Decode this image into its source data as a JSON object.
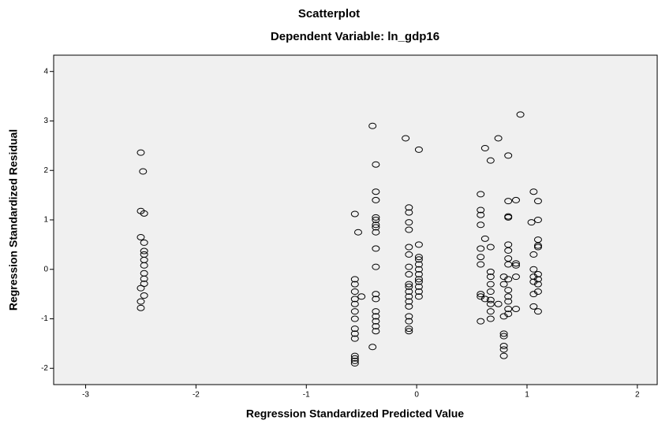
{
  "chart_data": {
    "type": "scatter",
    "title": "Scatterplot",
    "subtitle": "Dependent Variable: ln_gdp16",
    "xlabel": "Regression Standardized Predicted Value",
    "ylabel": "Regression Standardized Residual",
    "xlim": [
      -3.29,
      2.18
    ],
    "ylim": [
      -2.33,
      4.33
    ],
    "xticks": [
      -3,
      -2,
      -1,
      0,
      1,
      2
    ],
    "yticks": [
      -2,
      -1,
      0,
      1,
      2,
      3,
      4
    ],
    "color": "#000000",
    "background": "#f0f0f0",
    "x": [
      -2.5,
      -2.48,
      -2.5,
      -2.47,
      -2.5,
      -2.47,
      -2.47,
      -2.47,
      -2.47,
      -2.47,
      -2.47,
      -2.47,
      -2.47,
      -2.5,
      -2.47,
      -2.5,
      -2.5,
      -0.56,
      -0.56,
      -0.56,
      -0.56,
      -0.56,
      -0.56,
      -0.56,
      -0.56,
      -0.56,
      -0.56,
      -0.56,
      -0.56,
      -0.56,
      -0.56,
      -0.56,
      -0.53,
      -0.5,
      -0.4,
      -0.37,
      -0.37,
      -0.37,
      -0.37,
      -0.37,
      -0.37,
      -0.37,
      -0.37,
      -0.37,
      -0.37,
      -0.37,
      -0.37,
      -0.37,
      -0.37,
      -0.37,
      -0.37,
      -0.37,
      -0.4,
      -0.1,
      -0.07,
      -0.07,
      -0.07,
      -0.07,
      -0.07,
      -0.07,
      -0.07,
      -0.07,
      -0.07,
      -0.07,
      -0.07,
      -0.07,
      -0.07,
      -0.07,
      -0.07,
      -0.07,
      -0.07,
      -0.07,
      0.02,
      0.02,
      0.02,
      0.02,
      0.02,
      0.02,
      0.02,
      0.02,
      0.02,
      0.02,
      0.02,
      0.02,
      0.58,
      0.58,
      0.58,
      0.58,
      0.58,
      0.58,
      0.58,
      0.58,
      0.58,
      0.58,
      0.62,
      0.62,
      0.62,
      0.67,
      0.67,
      0.67,
      0.67,
      0.67,
      0.67,
      0.67,
      0.67,
      0.67,
      0.67,
      0.74,
      0.74,
      0.79,
      0.79,
      0.79,
      0.79,
      0.79,
      0.79,
      0.79,
      0.79,
      0.83,
      0.83,
      0.83,
      0.83,
      0.83,
      0.83,
      0.83,
      0.83,
      0.83,
      0.83,
      0.83,
      0.83,
      0.83,
      0.83,
      0.9,
      0.9,
      0.9,
      0.9,
      0.9,
      0.94,
      1.04,
      1.06,
      1.06,
      1.06,
      1.06,
      1.06,
      1.06,
      1.06,
      1.1,
      1.1,
      1.1,
      1.1,
      1.1,
      1.1,
      1.1,
      1.1,
      1.1,
      1.1
    ],
    "values": [
      2.36,
      1.98,
      1.18,
      1.13,
      0.65,
      0.54,
      0.37,
      0.3,
      0.19,
      0.08,
      -0.08,
      -0.19,
      -0.29,
      -0.38,
      -0.53,
      -0.65,
      -0.78,
      1.12,
      -0.2,
      -0.3,
      -0.45,
      -0.6,
      -0.7,
      -0.85,
      -1.0,
      -1.2,
      -1.3,
      -1.4,
      -1.75,
      -1.8,
      -1.85,
      -1.9,
      0.75,
      -0.55,
      2.9,
      2.12,
      1.57,
      1.4,
      1.05,
      1.0,
      0.9,
      0.85,
      0.75,
      0.42,
      0.05,
      -0.5,
      -0.6,
      -0.85,
      -0.95,
      -1.05,
      -1.15,
      -1.25,
      -1.57,
      2.65,
      1.25,
      1.15,
      0.95,
      0.8,
      0.45,
      0.3,
      0.05,
      -0.1,
      -0.3,
      -0.35,
      -0.45,
      -0.55,
      -0.65,
      -0.75,
      -0.95,
      -1.05,
      -1.2,
      -1.25,
      2.42,
      0.5,
      0.25,
      0.2,
      0.1,
      0,
      -0.1,
      -0.2,
      -0.25,
      -0.35,
      -0.45,
      -0.55,
      1.52,
      1.2,
      1.1,
      0.9,
      0.42,
      0.25,
      0.1,
      -0.5,
      -0.55,
      -1.05,
      2.45,
      0.62,
      -0.6,
      2.2,
      0.45,
      -0.05,
      -0.15,
      -0.3,
      -0.45,
      -0.62,
      -0.7,
      -0.85,
      -1.0,
      2.65,
      -0.7,
      -0.15,
      -0.3,
      -0.95,
      -1.3,
      -1.35,
      -1.55,
      -1.62,
      -1.75,
      2.3,
      1.38,
      1.07,
      1.05,
      0.5,
      0.38,
      0.22,
      0.1,
      -0.2,
      -0.42,
      -0.55,
      -0.65,
      -0.8,
      -0.9,
      1.4,
      0.12,
      0.08,
      -0.15,
      -0.8,
      3.13,
      0.95,
      1.57,
      0.3,
      0,
      -0.15,
      -0.25,
      -0.5,
      -0.75,
      1.38,
      1.0,
      0.6,
      0.48,
      0.45,
      -0.1,
      -0.2,
      -0.3,
      -0.45,
      -0.85
    ]
  }
}
